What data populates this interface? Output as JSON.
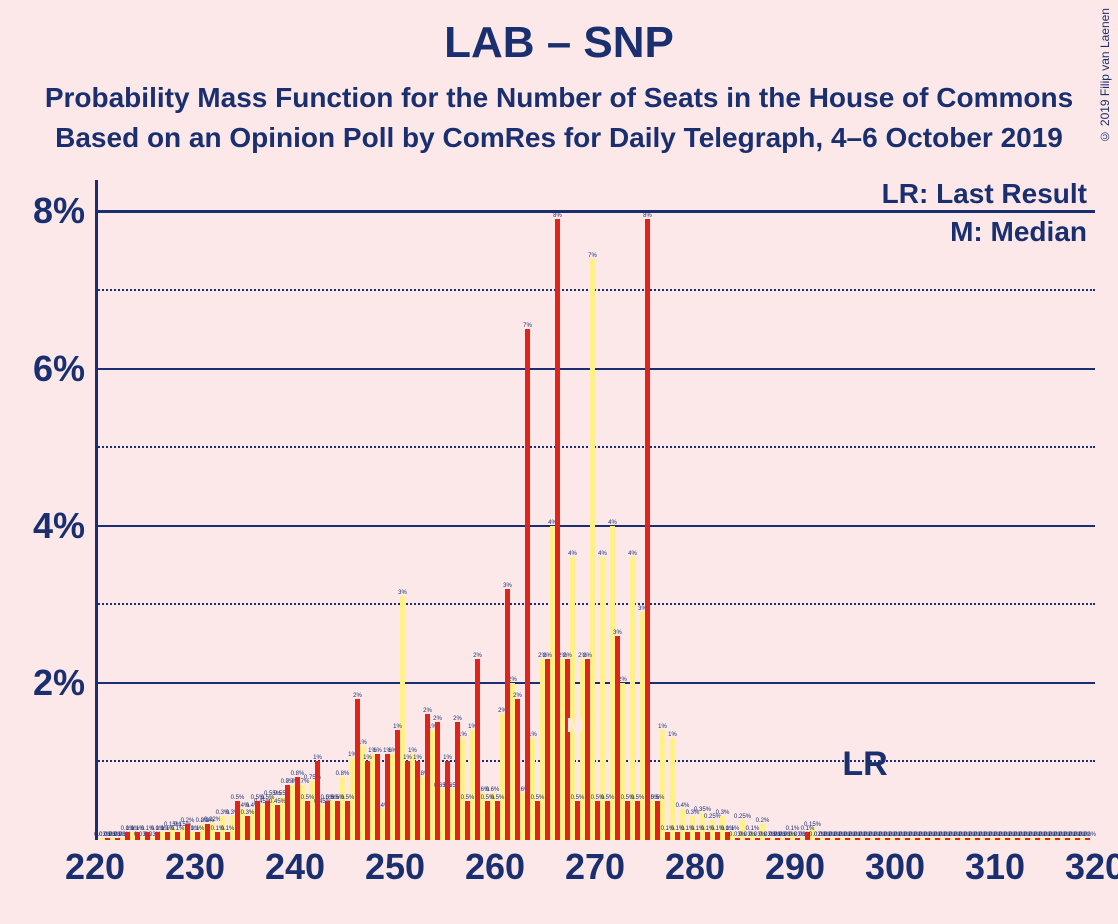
{
  "chart": {
    "type": "bar",
    "title": "LAB – SNP",
    "subtitle1": "Probability Mass Function for the Number of Seats in the House of Commons",
    "subtitle2": "Based on an Opinion Poll by ComRes for Daily Telegraph, 4–6 October 2019",
    "copyright": "© 2019 Filip van Laenen",
    "background_color": "#fce8e8",
    "text_color": "#1a2f6f",
    "title_fontsize": 44,
    "subtitle_fontsize": 28,
    "axis_fontsize": 36,
    "legend_fontsize": 28,
    "x_axis": {
      "min": 220,
      "max": 320,
      "major_step": 10
    },
    "y_axis": {
      "min": 0,
      "max": 8.4,
      "major_step": 2,
      "minor_step": 1,
      "unit": "%"
    },
    "grid": {
      "solid_color": "#1a2f6f",
      "dotted_color": "#1a2f6f"
    },
    "series": [
      {
        "name": "series-yellow",
        "color": "#fff08a",
        "bar_x_offset": -0.5,
        "bar_width": 0.5
      },
      {
        "name": "series-red",
        "color": "#e32219",
        "bar_x_offset": 0.0,
        "bar_width": 0.5
      }
    ],
    "legend": {
      "lr_key": "LR:",
      "lr_desc": "Last Result",
      "m_key": "M:",
      "m_desc": "Median",
      "lr_text": "LR: Last Result",
      "m_text": "M: Median"
    },
    "annotations": {
      "lr_x": 297,
      "lr_label": "LR",
      "median_x": 268,
      "m_label": "M"
    },
    "yellow_values": {
      "221": 0.03,
      "222": 0.03,
      "223": 0.03,
      "224": 0.1,
      "225": 0.03,
      "226": 0.03,
      "227": 0.1,
      "228": 0.15,
      "229": 0.15,
      "230": 0.1,
      "231": 0.2,
      "232": 0.22,
      "233": 0.3,
      "234": 0.3,
      "235": 0.4,
      "236": 0.4,
      "237": 0.45,
      "238": 0.55,
      "239": 0.55,
      "240": 0.7,
      "241": 0.7,
      "242": 0.75,
      "243": 0.45,
      "244": 0.5,
      "245": 0.8,
      "246": 1.05,
      "247": 1.2,
      "248": 1.1,
      "249": 0.4,
      "250": 1.1,
      "251": 3.1,
      "252": 1.1,
      "253": 0.8,
      "254": 1.4,
      "255": 0.65,
      "256": 0.65,
      "257": 1.3,
      "258": 1.4,
      "259": 0.6,
      "260": 0.6,
      "261": 1.6,
      "262": 2.0,
      "263": 0.6,
      "264": 1.3,
      "265": 2.3,
      "266": 4.0,
      "267": 2.3,
      "268": 3.6,
      "269": 2.3,
      "270": 7.4,
      "271": 3.6,
      "272": 4.0,
      "273": 2.0,
      "274": 3.6,
      "275": 2.9,
      "276": 0.5,
      "277": 1.4,
      "278": 1.3,
      "279": 0.4,
      "280": 0.3,
      "281": 0.35,
      "282": 0.25,
      "283": 0.3,
      "284": 0.1,
      "285": 0.25,
      "286": 0.1,
      "287": 0.2,
      "288": 0.03,
      "289": 0.03,
      "290": 0.1,
      "291": 0.03,
      "292": 0.15,
      "293": 0.02,
      "294": 0.02,
      "295": 0.02,
      "296": 0.02,
      "297": 0.02,
      "298": 0.02,
      "299": 0.02,
      "300": 0.02,
      "301": 0.02,
      "302": 0.02,
      "303": 0.02,
      "304": 0.02,
      "305": 0.02,
      "306": 0.02,
      "307": 0.02,
      "308": 0.02,
      "309": 0.02,
      "310": 0.02,
      "311": 0.02,
      "312": 0.02,
      "313": 0.02,
      "314": 0.02,
      "315": 0.02,
      "316": 0.02,
      "317": 0.02,
      "318": 0.02,
      "319": 0.02
    },
    "red_values": {
      "221": 0.03,
      "222": 0.03,
      "223": 0.1,
      "224": 0.1,
      "225": 0.1,
      "226": 0.1,
      "227": 0.1,
      "228": 0.1,
      "229": 0.2,
      "230": 0.1,
      "231": 0.2,
      "232": 0.1,
      "233": 0.1,
      "234": 0.5,
      "235": 0.3,
      "236": 0.5,
      "237": 0.5,
      "238": 0.45,
      "239": 0.7,
      "240": 0.8,
      "241": 0.5,
      "242": 1.0,
      "243": 0.5,
      "244": 0.5,
      "245": 0.5,
      "246": 1.8,
      "247": 1.0,
      "248": 1.1,
      "249": 1.1,
      "250": 1.4,
      "251": 1.0,
      "252": 1.0,
      "253": 1.6,
      "254": 1.5,
      "255": 1.0,
      "256": 1.5,
      "257": 0.5,
      "258": 2.3,
      "259": 0.5,
      "260": 0.5,
      "261": 3.2,
      "262": 1.8,
      "263": 6.5,
      "264": 0.5,
      "265": 2.3,
      "266": 7.9,
      "267": 2.3,
      "268": 0.5,
      "269": 2.3,
      "270": 0.5,
      "271": 0.5,
      "272": 2.6,
      "273": 0.5,
      "274": 0.5,
      "275": 7.9,
      "276": 0.5,
      "277": 0.1,
      "278": 0.1,
      "279": 0.1,
      "280": 0.1,
      "281": 0.1,
      "282": 0.1,
      "283": 0.1,
      "284": 0.03,
      "285": 0.03,
      "286": 0.03,
      "287": 0.03,
      "288": 0.03,
      "289": 0.03,
      "290": 0.03,
      "291": 0.1,
      "292": 0.02,
      "293": 0.02,
      "294": 0.02,
      "295": 0.02,
      "296": 0.02,
      "297": 0.02,
      "298": 0.02,
      "299": 0.02,
      "300": 0.02,
      "301": 0.02,
      "302": 0.02,
      "303": 0.02,
      "304": 0.02,
      "305": 0.02,
      "306": 0.02,
      "307": 0.02,
      "308": 0.02,
      "309": 0.02,
      "310": 0.02,
      "311": 0.02,
      "312": 0.02,
      "313": 0.02,
      "314": 0.02,
      "315": 0.02,
      "316": 0.02,
      "317": 0.02,
      "318": 0.02,
      "319": 0.02
    }
  }
}
